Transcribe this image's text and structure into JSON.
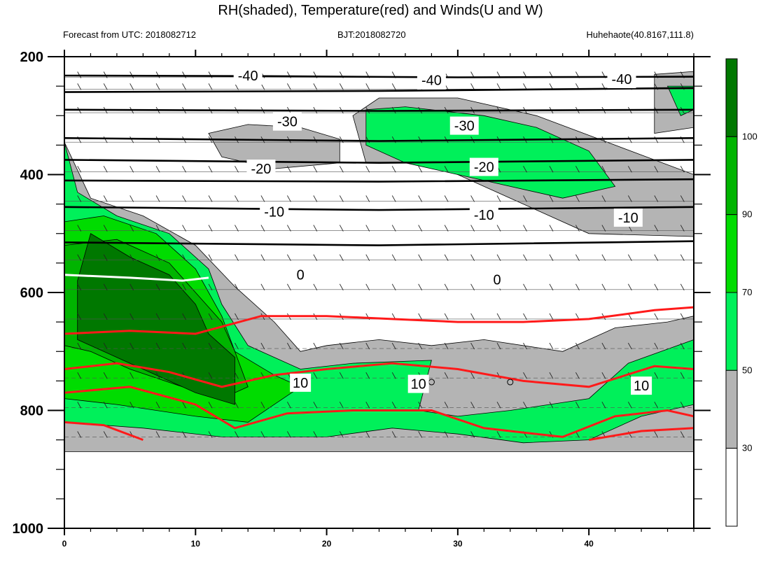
{
  "header": {
    "title": "RH(shaded), Temperature(red) and Winds(U and W)",
    "forecast": "Forecast from UTC: 2018082712",
    "bjt": "BJT:2018082720",
    "station": "Huhehaote(40.8167,111.8)"
  },
  "chart_data": {
    "type": "contour",
    "title": "RH(shaded), Temperature(red) and Winds(U and W)",
    "x": {
      "label": "",
      "range": [
        0,
        48
      ],
      "ticks": [
        0,
        10,
        20,
        30,
        40
      ]
    },
    "y": {
      "label": "",
      "range": [
        200,
        1000
      ],
      "inverted": true,
      "ticks": [
        200,
        400,
        600,
        800,
        1000
      ]
    },
    "colorbar": {
      "ticks": [
        30,
        50,
        70,
        90,
        100
      ],
      "levels": [
        {
          "from": 0,
          "to": 30,
          "color": "#ffffff"
        },
        {
          "from": 30,
          "to": 50,
          "color": "#b4b4b4"
        },
        {
          "from": 50,
          "to": 70,
          "color": "#00f05a"
        },
        {
          "from": 70,
          "to": 90,
          "color": "#00dc00"
        },
        {
          "from": 90,
          "to": 100,
          "color": "#00b400"
        },
        {
          "from": 100,
          "to": 110,
          "color": "#007800"
        }
      ]
    },
    "rh_regions": [
      {
        "level": 30,
        "color": "#b4b4b4",
        "points": [
          [
            0,
            345
          ],
          [
            2,
            440
          ],
          [
            6,
            470
          ],
          [
            10,
            520
          ],
          [
            13,
            590
          ],
          [
            16,
            650
          ],
          [
            18,
            700
          ],
          [
            20,
            690
          ],
          [
            24,
            680
          ],
          [
            28,
            690
          ],
          [
            32,
            680
          ],
          [
            38,
            700
          ],
          [
            42,
            660
          ],
          [
            46,
            650
          ],
          [
            48,
            640
          ],
          [
            48,
            870
          ],
          [
            24,
            870
          ],
          [
            0,
            870
          ]
        ]
      },
      {
        "level": 50,
        "color": "#00f05a",
        "points": [
          [
            0,
            345
          ],
          [
            1,
            430
          ],
          [
            4,
            470
          ],
          [
            8,
            500
          ],
          [
            11,
            560
          ],
          [
            12,
            620
          ],
          [
            14,
            690
          ],
          [
            18,
            730
          ],
          [
            22,
            720
          ],
          [
            28,
            715
          ],
          [
            27,
            800
          ],
          [
            30,
            810
          ],
          [
            34,
            800
          ],
          [
            40,
            780
          ],
          [
            43,
            720
          ],
          [
            48,
            680
          ],
          [
            48,
            790
          ],
          [
            44,
            810
          ],
          [
            40,
            850
          ],
          [
            35,
            855
          ],
          [
            30,
            840
          ],
          [
            25,
            830
          ],
          [
            20,
            845
          ],
          [
            12,
            845
          ],
          [
            6,
            830
          ],
          [
            0,
            820
          ]
        ]
      },
      {
        "level": 70,
        "color": "#00dc00",
        "points": [
          [
            0,
            480
          ],
          [
            3,
            470
          ],
          [
            7,
            500
          ],
          [
            10,
            560
          ],
          [
            12,
            640
          ],
          [
            13,
            700
          ],
          [
            16,
            740
          ],
          [
            18,
            760
          ],
          [
            16,
            790
          ],
          [
            14,
            820
          ],
          [
            10,
            810
          ],
          [
            4,
            790
          ],
          [
            0,
            780
          ]
        ]
      },
      {
        "level": 90,
        "color": "#00b400",
        "points": [
          [
            0,
            520
          ],
          [
            4,
            510
          ],
          [
            8,
            550
          ],
          [
            10,
            600
          ],
          [
            12,
            650
          ],
          [
            13,
            700
          ],
          [
            14,
            760
          ],
          [
            12,
            780
          ],
          [
            9,
            760
          ],
          [
            5,
            730
          ],
          [
            2,
            700
          ],
          [
            0,
            690
          ]
        ]
      },
      {
        "level": 100,
        "color": "#007800",
        "points": [
          [
            1,
            580
          ],
          [
            2,
            500
          ],
          [
            5,
            540
          ],
          [
            8,
            570
          ],
          [
            10,
            620
          ],
          [
            11,
            670
          ],
          [
            13,
            710
          ],
          [
            13,
            790
          ],
          [
            10,
            770
          ],
          [
            7,
            740
          ],
          [
            4,
            710
          ],
          [
            1,
            680
          ]
        ]
      },
      {
        "level": 30,
        "color": "#b4b4b4",
        "points": [
          [
            11,
            330
          ],
          [
            14,
            315
          ],
          [
            18,
            320
          ],
          [
            21,
            340
          ],
          [
            21,
            380
          ],
          [
            16,
            390
          ],
          [
            12,
            370
          ]
        ]
      },
      {
        "level": 30,
        "color": "#b4b4b4",
        "points": [
          [
            22,
            300
          ],
          [
            24,
            270
          ],
          [
            30,
            270
          ],
          [
            36,
            300
          ],
          [
            42,
            350
          ],
          [
            48,
            400
          ],
          [
            48,
            505
          ],
          [
            40,
            500
          ],
          [
            34,
            440
          ],
          [
            28,
            380
          ],
          [
            23,
            380
          ]
        ]
      },
      {
        "level": 50,
        "color": "#00f05a",
        "points": [
          [
            23,
            290
          ],
          [
            26,
            285
          ],
          [
            32,
            300
          ],
          [
            36,
            320
          ],
          [
            40,
            360
          ],
          [
            42,
            420
          ],
          [
            38,
            440
          ],
          [
            32,
            410
          ],
          [
            26,
            380
          ],
          [
            23,
            350
          ]
        ]
      },
      {
        "level": 30,
        "color": "#b4b4b4",
        "points": [
          [
            45,
            230
          ],
          [
            48,
            225
          ],
          [
            48,
            320
          ],
          [
            45,
            330
          ]
        ]
      },
      {
        "level": 50,
        "color": "#00f05a",
        "points": [
          [
            46,
            250
          ],
          [
            48,
            250
          ],
          [
            48,
            290
          ],
          [
            47,
            300
          ]
        ]
      }
    ],
    "temperature_contours": [
      {
        "label": "10",
        "points": [
          [
            0,
            670
          ],
          [
            5,
            665
          ],
          [
            10,
            670
          ],
          [
            15,
            640
          ],
          [
            20,
            640
          ],
          [
            25,
            645
          ],
          [
            30,
            650
          ],
          [
            35,
            650
          ],
          [
            40,
            645
          ],
          [
            45,
            630
          ],
          [
            48,
            625
          ]
        ]
      },
      {
        "label": "10",
        "points": [
          [
            0,
            730
          ],
          [
            4,
            720
          ],
          [
            8,
            735
          ],
          [
            12,
            760
          ],
          [
            16,
            740
          ],
          [
            20,
            730
          ],
          [
            25,
            720
          ],
          [
            30,
            730
          ],
          [
            35,
            750
          ],
          [
            40,
            760
          ],
          [
            45,
            725
          ],
          [
            48,
            730
          ]
        ]
      },
      {
        "label": "",
        "points": [
          [
            0,
            770
          ],
          [
            5,
            760
          ],
          [
            10,
            790
          ],
          [
            13,
            830
          ],
          [
            17,
            805
          ],
          [
            22,
            800
          ],
          [
            28,
            800
          ],
          [
            32,
            830
          ],
          [
            38,
            845
          ],
          [
            42,
            810
          ],
          [
            46,
            800
          ],
          [
            48,
            810
          ]
        ]
      },
      {
        "label": "",
        "points": [
          [
            0,
            820
          ],
          [
            3,
            825
          ],
          [
            6,
            850
          ]
        ]
      },
      {
        "label": "",
        "points": [
          [
            40,
            850
          ],
          [
            44,
            835
          ],
          [
            48,
            830
          ]
        ]
      }
    ],
    "isotherms": [
      {
        "label": "-40",
        "points": [
          [
            0,
            232
          ],
          [
            15,
            233
          ],
          [
            30,
            235
          ],
          [
            48,
            234
          ]
        ]
      },
      {
        "label": "-40",
        "points": [
          [
            0,
            260
          ],
          [
            24,
            258
          ],
          [
            48,
            253
          ]
        ]
      },
      {
        "label": "-30",
        "points": [
          [
            0,
            290
          ],
          [
            24,
            292
          ],
          [
            48,
            290
          ]
        ]
      },
      {
        "label": "-30",
        "points": [
          [
            0,
            338
          ],
          [
            24,
            343
          ],
          [
            48,
            338
          ]
        ]
      },
      {
        "label": "-20",
        "points": [
          [
            0,
            375
          ],
          [
            24,
            380
          ],
          [
            48,
            375
          ]
        ]
      },
      {
        "label": "",
        "points": [
          [
            0,
            410
          ],
          [
            24,
            412
          ],
          [
            48,
            408
          ]
        ]
      },
      {
        "label": "-10",
        "points": [
          [
            0,
            455
          ],
          [
            24,
            460
          ],
          [
            48,
            455
          ]
        ]
      },
      {
        "label": "",
        "points": [
          [
            0,
            515
          ],
          [
            24,
            520
          ],
          [
            48,
            513
          ]
        ]
      }
    ],
    "zero_line": {
      "label": "0",
      "points": [
        [
          0,
          570
        ],
        [
          5,
          575
        ],
        [
          9,
          580
        ],
        [
          11,
          575
        ]
      ]
    },
    "contour_labels": [
      {
        "text": "-40",
        "x": 14,
        "y": 232
      },
      {
        "text": "-40",
        "x": 28,
        "y": 240
      },
      {
        "text": "-40",
        "x": 42.5,
        "y": 238
      },
      {
        "text": "-30",
        "x": 17,
        "y": 310
      },
      {
        "text": "-30",
        "x": 30.5,
        "y": 317
      },
      {
        "text": "-20",
        "x": 15,
        "y": 390
      },
      {
        "text": "-20",
        "x": 32,
        "y": 387
      },
      {
        "text": "-10",
        "x": 16,
        "y": 463
      },
      {
        "text": "-10",
        "x": 32,
        "y": 468
      },
      {
        "text": "-10",
        "x": 43,
        "y": 473
      },
      {
        "text": "0",
        "x": 18,
        "y": 570
      },
      {
        "text": "0",
        "x": 33,
        "y": 578
      },
      {
        "text": "10",
        "x": 18,
        "y": 753
      },
      {
        "text": "10",
        "x": 27,
        "y": 755
      },
      {
        "text": "10",
        "x": 44,
        "y": 758
      }
    ],
    "wind_rows": [
      235,
      255,
      295,
      345,
      395,
      445,
      495,
      545,
      595,
      645,
      695,
      745,
      795,
      845
    ]
  }
}
